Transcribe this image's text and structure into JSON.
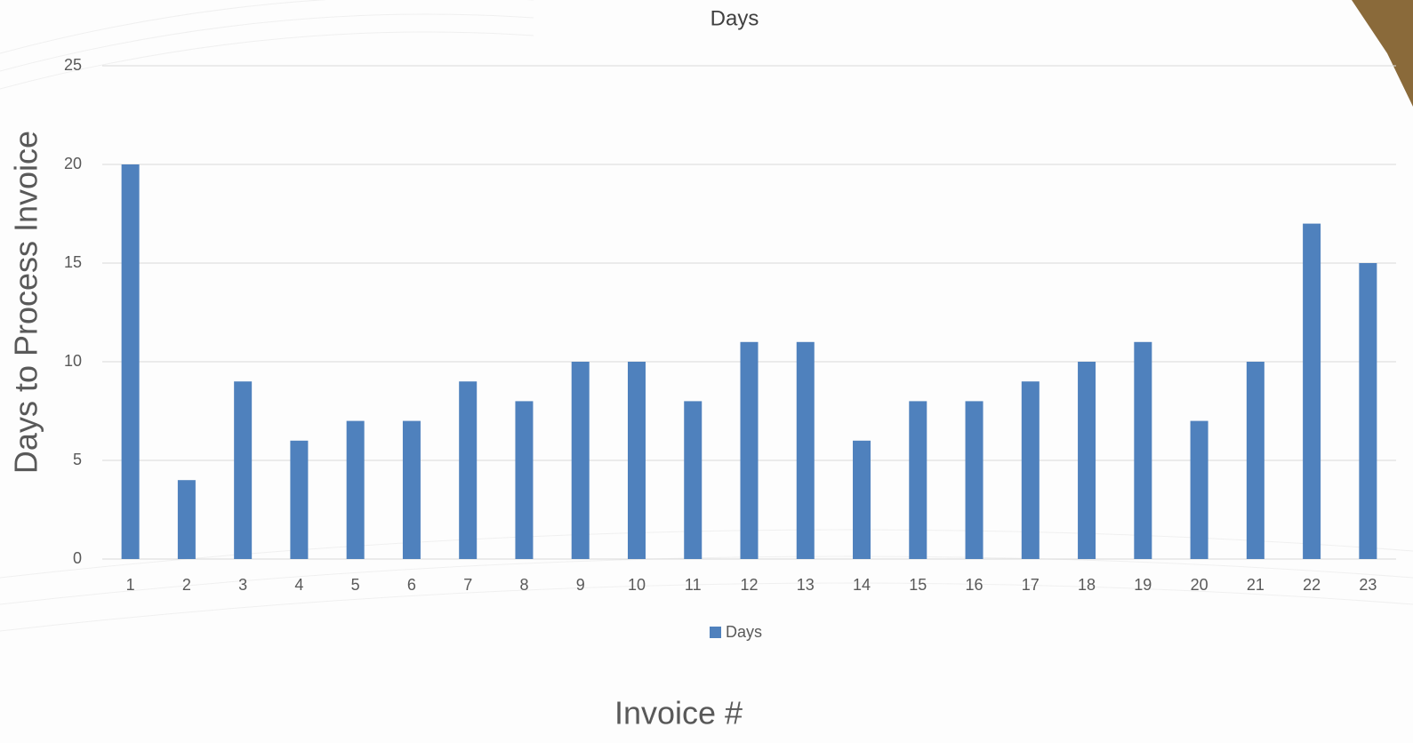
{
  "chart_data": {
    "type": "bar",
    "title": "Days",
    "x_label": "Invoice #",
    "y_label": "Days to Process Invoice",
    "categories": [
      "1",
      "2",
      "3",
      "4",
      "5",
      "6",
      "7",
      "8",
      "9",
      "10",
      "11",
      "12",
      "13",
      "14",
      "15",
      "16",
      "17",
      "18",
      "19",
      "20",
      "21",
      "22",
      "23"
    ],
    "series": [
      {
        "name": "Days",
        "color": "#4f81bd",
        "values": [
          20,
          4,
          9,
          6,
          7,
          7,
          9,
          8,
          10,
          10,
          8,
          11,
          11,
          6,
          8,
          8,
          9,
          10,
          11,
          7,
          10,
          17,
          15
        ]
      }
    ],
    "ylim": [
      0,
      25
    ],
    "yticks": [
      0,
      5,
      10,
      15,
      20,
      25
    ],
    "grid": true,
    "legend": "bottom"
  }
}
